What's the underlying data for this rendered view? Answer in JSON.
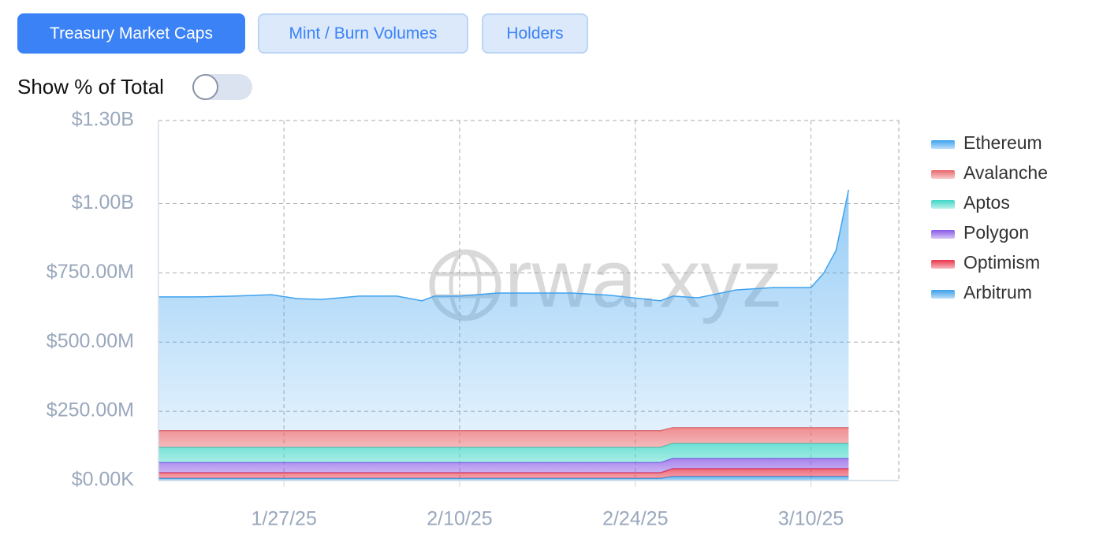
{
  "tabs": [
    "Treasury Market Caps",
    "Mint / Burn Volumes",
    "Holders"
  ],
  "toggle_label": "Show % of Total",
  "watermark": "rwa.xyz",
  "chart_data": {
    "type": "stacked-area",
    "x": [
      "2025-01-17",
      "2025-01-20",
      "2025-01-23",
      "2025-01-26",
      "2025-01-28",
      "2025-01-30",
      "2025-02-02",
      "2025-02-05",
      "2025-02-07",
      "2025-02-08",
      "2025-02-10",
      "2025-02-13",
      "2025-02-16",
      "2025-02-19",
      "2025-02-22",
      "2025-02-26",
      "2025-02-27",
      "2025-03-01",
      "2025-03-04",
      "2025-03-07",
      "2025-03-10",
      "2025-03-11",
      "2025-03-12",
      "2025-03-13"
    ],
    "xlim": [
      "2025-01-17",
      "2025-03-17"
    ],
    "xticks": [
      {
        "value": "2025-01-27",
        "label": "1/27/25"
      },
      {
        "value": "2025-02-10",
        "label": "2/10/25"
      },
      {
        "value": "2025-02-24",
        "label": "2/24/25"
      },
      {
        "value": "2025-03-10",
        "label": "3/10/25"
      }
    ],
    "ylim": [
      0,
      1300000000
    ],
    "yticks": [
      {
        "value": 0,
        "label": "$0.00K"
      },
      {
        "value": 250000000,
        "label": "$250.00M"
      },
      {
        "value": 500000000,
        "label": "$500.00M"
      },
      {
        "value": 750000000,
        "label": "$750.00M"
      },
      {
        "value": 1000000000,
        "label": "$1.00B"
      },
      {
        "value": 1300000000,
        "label": "$1.30B"
      }
    ],
    "grid": true,
    "legend": "right",
    "series": [
      {
        "name": "Ethereum",
        "color": "#3fa2ef",
        "values": [
          483000000,
          483000000,
          486000000,
          491000000,
          477000000,
          474000000,
          486000000,
          486000000,
          469000000,
          486000000,
          486000000,
          497000000,
          497000000,
          497000000,
          489000000,
          469000000,
          475000000,
          469000000,
          497000000,
          506000000,
          506000000,
          557000000,
          640000000,
          859000000
        ]
      },
      {
        "name": "Avalanche",
        "color": "#e8686c",
        "values": [
          60000000,
          60000000,
          60000000,
          60000000,
          60000000,
          60000000,
          60000000,
          60000000,
          60000000,
          60000000,
          60000000,
          60000000,
          60000000,
          60000000,
          60000000,
          60000000,
          57000000,
          57000000,
          57000000,
          57000000,
          57000000,
          57000000,
          57000000,
          57000000
        ]
      },
      {
        "name": "Aptos",
        "color": "#3fd6c6",
        "values": [
          55000000,
          55000000,
          55000000,
          55000000,
          55000000,
          55000000,
          55000000,
          55000000,
          55000000,
          55000000,
          55000000,
          55000000,
          55000000,
          55000000,
          55000000,
          55000000,
          54000000,
          54000000,
          54000000,
          54000000,
          54000000,
          54000000,
          54000000,
          54000000
        ]
      },
      {
        "name": "Polygon",
        "color": "#8a5ae6",
        "values": [
          37000000,
          37000000,
          37000000,
          37000000,
          37000000,
          37000000,
          37000000,
          37000000,
          37000000,
          37000000,
          37000000,
          37000000,
          37000000,
          37000000,
          37000000,
          37000000,
          37000000,
          37000000,
          37000000,
          37000000,
          37000000,
          37000000,
          37000000,
          37000000
        ]
      },
      {
        "name": "Optimism",
        "color": "#e8354a",
        "values": [
          20000000,
          20000000,
          20000000,
          20000000,
          20000000,
          20000000,
          20000000,
          20000000,
          20000000,
          20000000,
          20000000,
          20000000,
          20000000,
          20000000,
          20000000,
          20000000,
          28000000,
          28000000,
          28000000,
          28000000,
          28000000,
          28000000,
          28000000,
          28000000
        ]
      },
      {
        "name": "Arbitrum",
        "color": "#3b9fe8",
        "values": [
          8000000,
          8000000,
          8000000,
          8000000,
          8000000,
          8000000,
          8000000,
          8000000,
          8000000,
          8000000,
          8000000,
          8000000,
          8000000,
          8000000,
          8000000,
          8000000,
          15000000,
          15000000,
          15000000,
          15000000,
          15000000,
          15000000,
          15000000,
          15000000
        ]
      }
    ]
  }
}
